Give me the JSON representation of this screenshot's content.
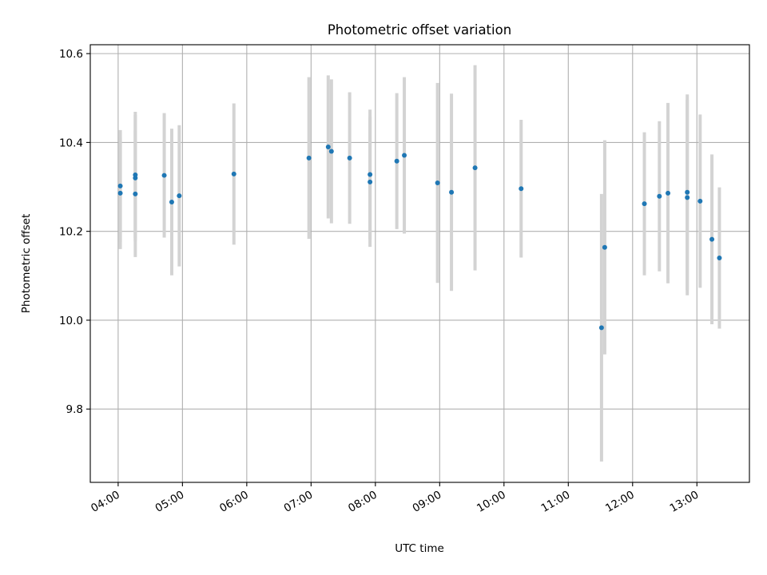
{
  "chart_data": {
    "type": "scatter",
    "title": "Photometric offset variation",
    "xlabel": "UTC time",
    "ylabel": "Photometric offset",
    "x_ticks": [
      "04:00",
      "05:00",
      "06:00",
      "07:00",
      "08:00",
      "09:00",
      "10:00",
      "11:00",
      "12:00",
      "13:00"
    ],
    "y_ticks": [
      "9.8",
      "10.0",
      "10.2",
      "10.4",
      "10.6"
    ],
    "xlim": [
      "03:34",
      "13:49"
    ],
    "ylim": [
      9.635,
      10.62
    ],
    "grid": true,
    "point_color": "#1f77b4",
    "errorbar_color": "#d3d3d3",
    "points": [
      {
        "x": "04:02",
        "y": 10.302,
        "err": 0.126
      },
      {
        "x": "04:02",
        "y": 10.286,
        "err": 0.126
      },
      {
        "x": "04:16",
        "y": 10.327,
        "err": 0.142
      },
      {
        "x": "04:16",
        "y": 10.32,
        "err": 0.142
      },
      {
        "x": "04:16",
        "y": 10.284,
        "err": 0.142
      },
      {
        "x": "04:43",
        "y": 10.326,
        "err": 0.14
      },
      {
        "x": "04:50",
        "y": 10.266,
        "err": 0.165
      },
      {
        "x": "04:57",
        "y": 10.28,
        "err": 0.159
      },
      {
        "x": "05:48",
        "y": 10.329,
        "err": 0.159
      },
      {
        "x": "06:58",
        "y": 10.365,
        "err": 0.182
      },
      {
        "x": "07:16",
        "y": 10.39,
        "err": 0.161
      },
      {
        "x": "07:19",
        "y": 10.38,
        "err": 0.162
      },
      {
        "x": "07:36",
        "y": 10.365,
        "err": 0.148
      },
      {
        "x": "07:55",
        "y": 10.328,
        "err": 0.146
      },
      {
        "x": "07:55",
        "y": 10.311,
        "err": 0.146
      },
      {
        "x": "08:20",
        "y": 10.358,
        "err": 0.153
      },
      {
        "x": "08:27",
        "y": 10.371,
        "err": 0.176
      },
      {
        "x": "08:58",
        "y": 10.309,
        "err": 0.225
      },
      {
        "x": "09:11",
        "y": 10.288,
        "err": 0.222
      },
      {
        "x": "09:33",
        "y": 10.343,
        "err": 0.231
      },
      {
        "x": "10:16",
        "y": 10.296,
        "err": 0.155
      },
      {
        "x": "11:31",
        "y": 9.983,
        "err": 0.301
      },
      {
        "x": "11:34",
        "y": 10.164,
        "err": 0.241
      },
      {
        "x": "12:11",
        "y": 10.262,
        "err": 0.161
      },
      {
        "x": "12:25",
        "y": 10.279,
        "err": 0.169
      },
      {
        "x": "12:33",
        "y": 10.286,
        "err": 0.203
      },
      {
        "x": "12:51",
        "y": 10.288,
        "err": 0.22
      },
      {
        "x": "12:51",
        "y": 10.276,
        "err": 0.22
      },
      {
        "x": "13:03",
        "y": 10.268,
        "err": 0.195
      },
      {
        "x": "13:14",
        "y": 10.182,
        "err": 0.191
      },
      {
        "x": "13:21",
        "y": 10.14,
        "err": 0.159
      }
    ]
  }
}
